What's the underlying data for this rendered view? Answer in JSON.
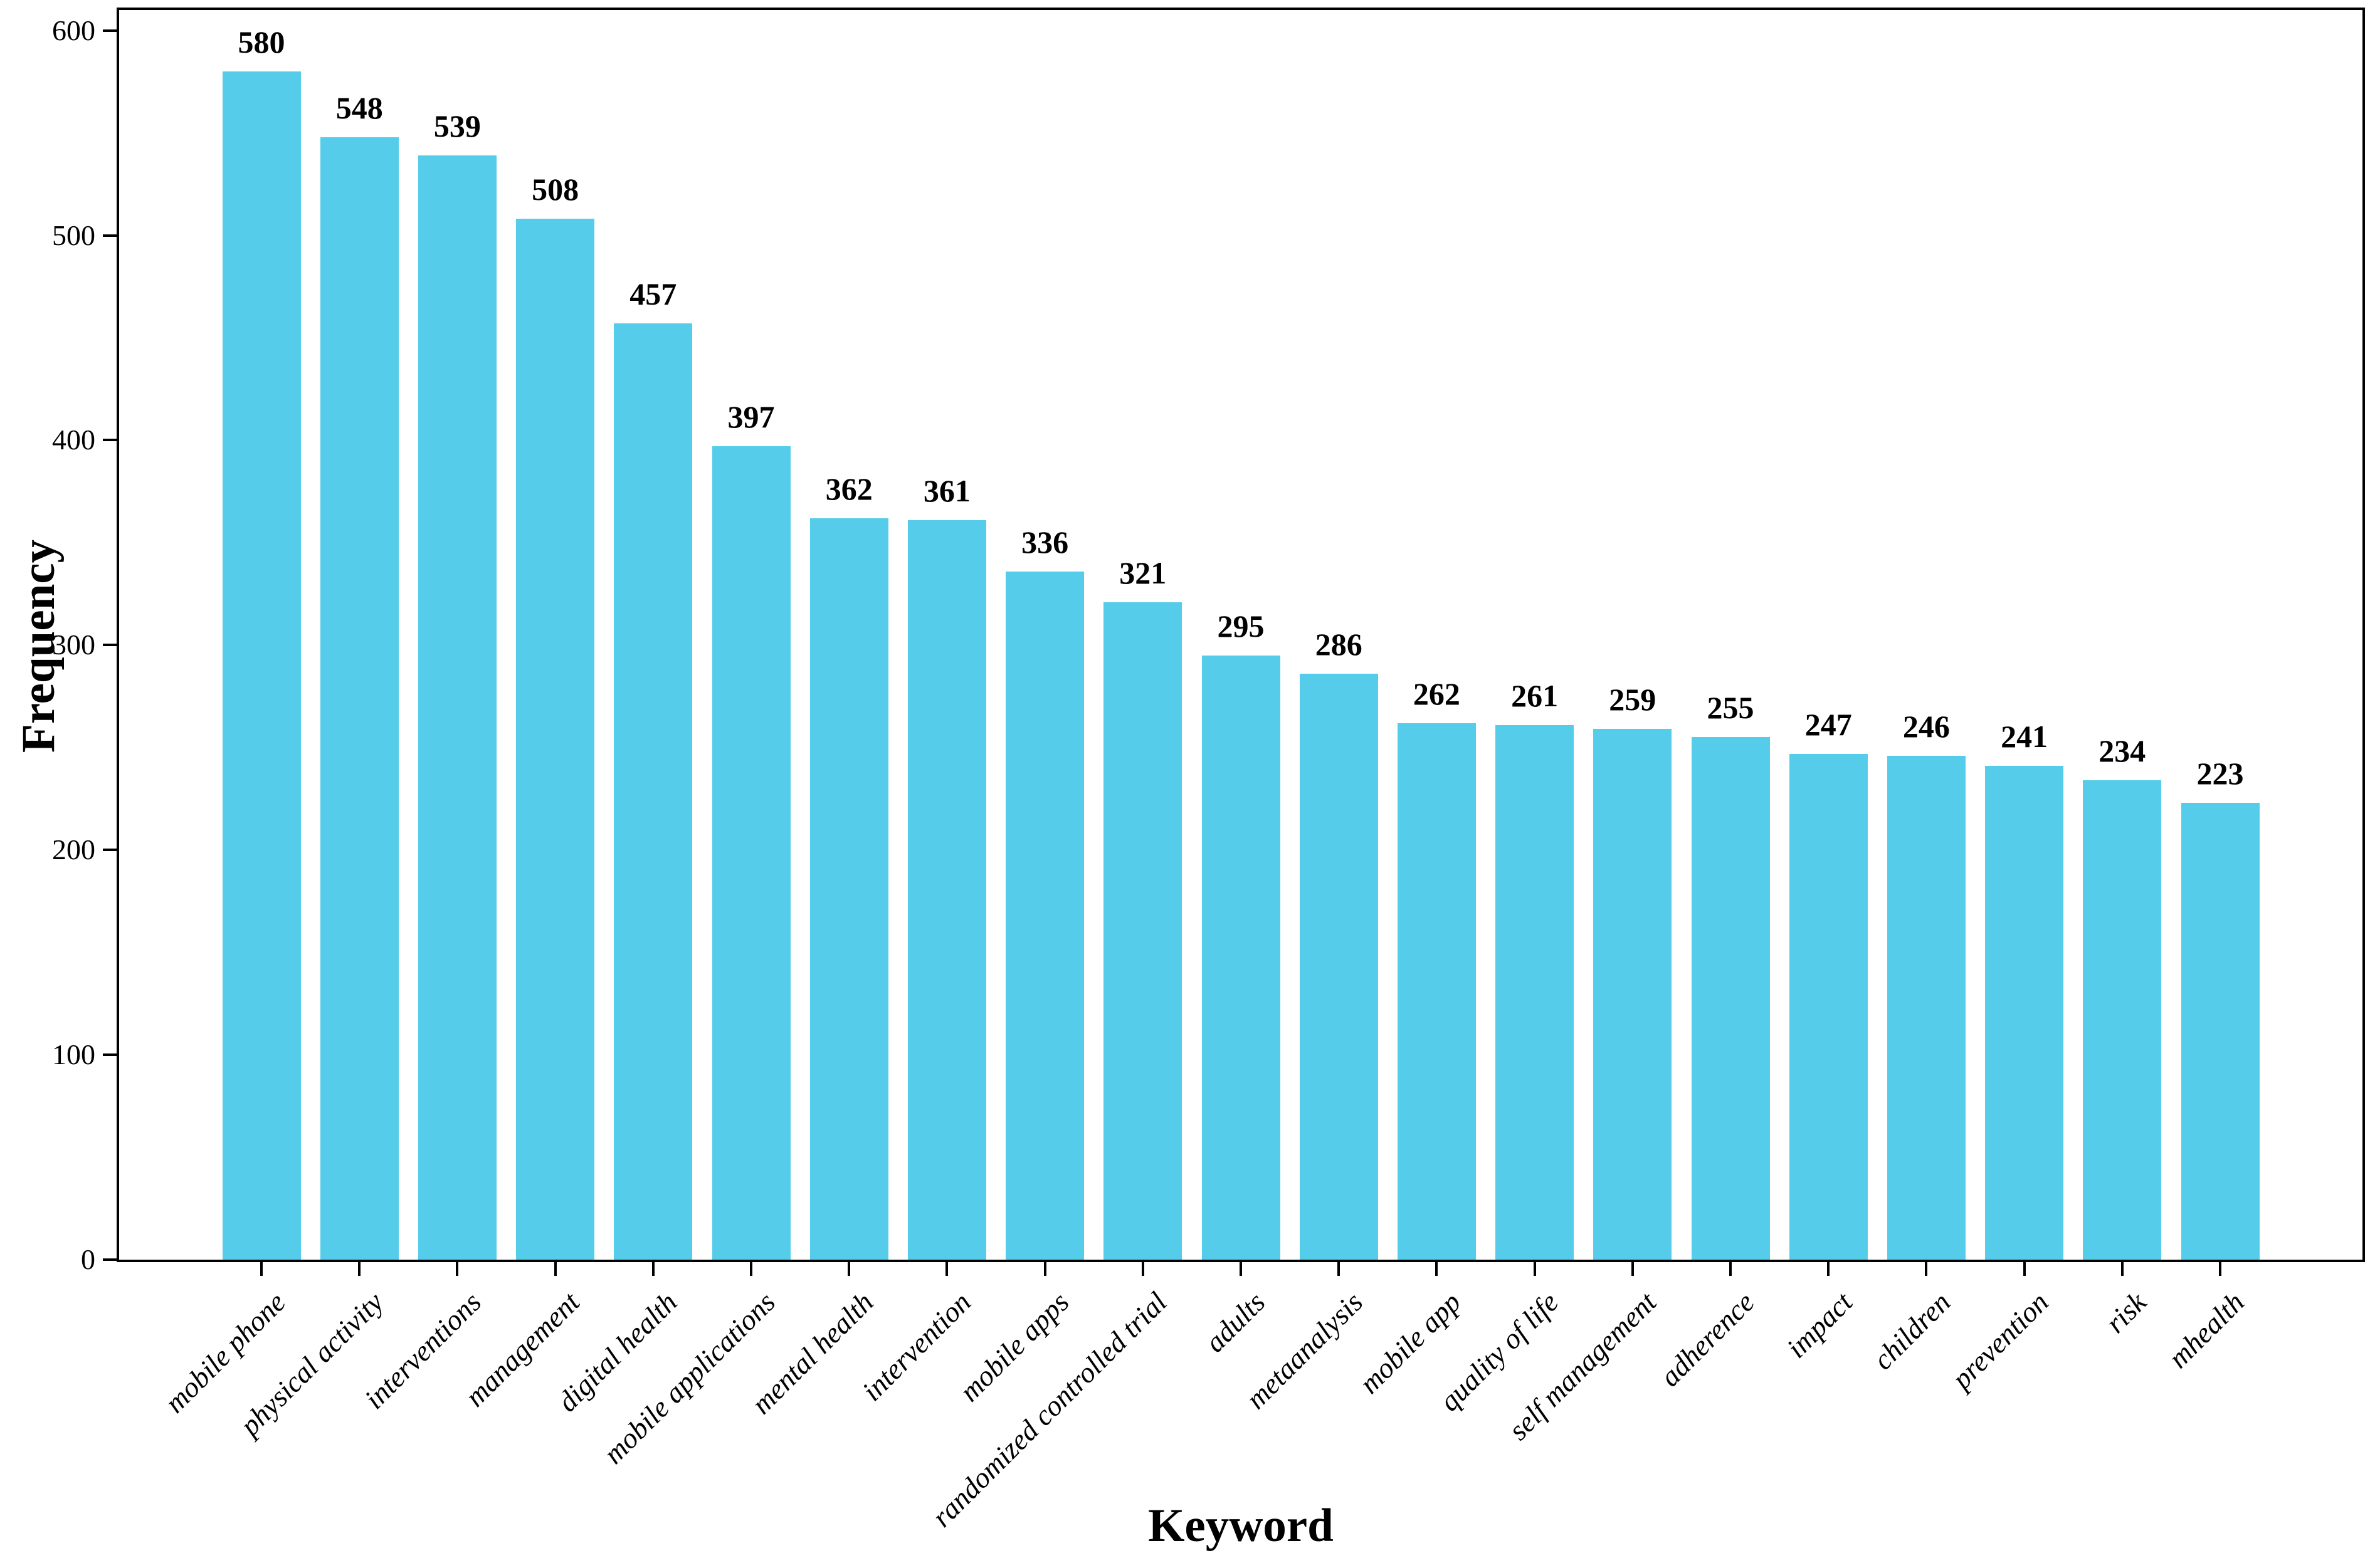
{
  "figure": {
    "background": "#ffffff",
    "axis_color": "#000000",
    "bar_color": "#55cce9"
  },
  "chart_data": {
    "type": "bar",
    "title": "",
    "xlabel": "Keyword",
    "ylabel": "Frequency",
    "categories": [
      "mobile phone",
      "physical activity",
      "interventions",
      "management",
      "digital health",
      "mobile applications",
      "mental health",
      "intervention",
      "mobile apps",
      "randomized controlled trial",
      "adults",
      "metaanalysis",
      "mobile app",
      "quality of life",
      "self management",
      "adherence",
      "impact",
      "children",
      "prevention",
      "risk",
      "mhealth"
    ],
    "values": [
      580,
      548,
      539,
      508,
      457,
      397,
      362,
      361,
      336,
      321,
      295,
      286,
      262,
      261,
      259,
      255,
      247,
      246,
      241,
      234,
      223
    ],
    "value_labels_shown": true,
    "yticks": [
      0,
      100,
      200,
      300,
      400,
      500,
      600
    ],
    "ylim": [
      0,
      610
    ],
    "grid": false,
    "legend_position": "none",
    "bar_color": "#55cce9",
    "xtick_label_rotation_deg": 45,
    "xtick_label_style": "italic"
  }
}
